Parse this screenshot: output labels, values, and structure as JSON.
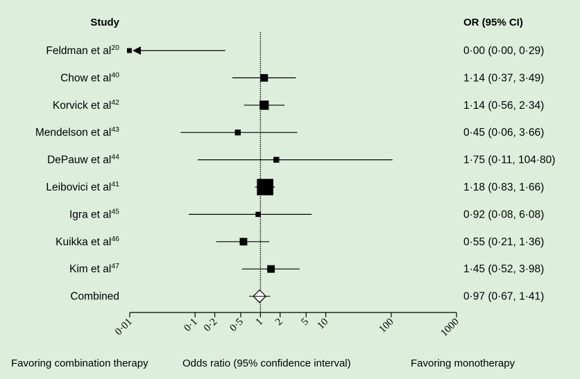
{
  "colors": {
    "background": "#ddeedd",
    "ink": "#000000",
    "diamond_fill": "#ffffff"
  },
  "header": {
    "study": "Study",
    "or_ci": "OR (95% CI)"
  },
  "footer": {
    "left": "Favoring combination therapy",
    "center": "Odds ratio (95% confidence interval)",
    "right": "Favoring monotherapy"
  },
  "chart_data": {
    "type": "forest",
    "x_scale": "log",
    "xlim": [
      0.01,
      1000
    ],
    "reference_line": 1,
    "tick_values": [
      0.01,
      0.1,
      0.2,
      0.5,
      1,
      2,
      5,
      10,
      100,
      1000
    ],
    "tick_labels": [
      "0·01",
      "0·1",
      "0·2",
      "0·5",
      "1",
      "2",
      "5",
      "10",
      "100",
      "1000"
    ],
    "studies": [
      {
        "name": "Feldman et al",
        "ref": "20",
        "or": 0.0,
        "lo": 0.0,
        "hi": 0.29,
        "ci_text": "0·00 (0·00, 0·29)",
        "weight": 2,
        "arrow_left": true
      },
      {
        "name": "Chow et al",
        "ref": "40",
        "or": 1.14,
        "lo": 0.37,
        "hi": 3.49,
        "ci_text": "1·14 (0·37, 3·49)",
        "weight": 3
      },
      {
        "name": "Korvick et al",
        "ref": "42",
        "or": 1.14,
        "lo": 0.56,
        "hi": 2.34,
        "ci_text": "1·14 (0·56, 2·34)",
        "weight": 6
      },
      {
        "name": "Mendelson et al",
        "ref": "43",
        "or": 0.45,
        "lo": 0.06,
        "hi": 3.66,
        "ci_text": "0·45 (0·06, 3·66)",
        "weight": 1
      },
      {
        "name": "DePauw et al",
        "ref": "44",
        "or": 1.75,
        "lo": 0.11,
        "hi": 104.8,
        "ci_text": "1·75 (0·11, 104·80)",
        "weight": 1
      },
      {
        "name": "Leibovici et al",
        "ref": "41",
        "or": 1.18,
        "lo": 0.83,
        "hi": 1.66,
        "ci_text": "1·18 (0·83, 1·66)",
        "weight": 30
      },
      {
        "name": "Igra et al",
        "ref": "45",
        "or": 0.92,
        "lo": 0.08,
        "hi": 6.08,
        "ci_text": "0·92 (0·08, 6·08)",
        "weight": 0.5
      },
      {
        "name": "Kuikka et al",
        "ref": "46",
        "or": 0.55,
        "lo": 0.21,
        "hi": 1.36,
        "ci_text": "0·55 (0·21, 1·36)",
        "weight": 3
      },
      {
        "name": "Kim et al",
        "ref": "47",
        "or": 1.45,
        "lo": 0.52,
        "hi": 3.98,
        "ci_text": "1·45 (0·52, 3·98)",
        "weight": 3
      }
    ],
    "combined": {
      "name": "Combined",
      "or": 0.97,
      "lo": 0.67,
      "hi": 1.41,
      "ci_text": "0·97 (0·67, 1·41)"
    }
  }
}
